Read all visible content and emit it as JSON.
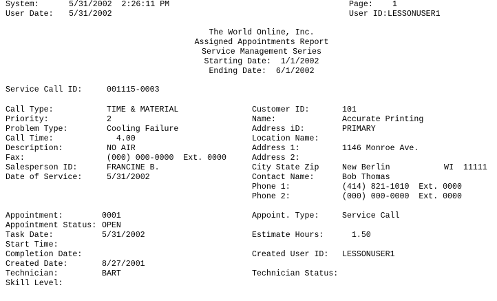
{
  "header": {
    "system_label": "System:",
    "system_value": "5/31/2002  2:26:11 PM",
    "user_date_label": "User Date:",
    "user_date_value": "5/31/2002",
    "page_label": "Page:",
    "page_value": "1",
    "user_id_label": "User ID:",
    "user_id_value": "LESSONUSER1"
  },
  "title": {
    "company": "The World Online, Inc.",
    "report": "Assigned Appointments Report",
    "series": "Service Management Series",
    "starting": "Starting Date:  1/1/2002",
    "ending": "Ending Date:  6/1/2002"
  },
  "service_call": {
    "label": "Service Call ID:",
    "value": "001115-0003"
  },
  "call_left": [
    {
      "label": "Call Type:",
      "value": "TIME & MATERIAL"
    },
    {
      "label": "Priority:",
      "value": "2"
    },
    {
      "label": "Problem Type:",
      "value": "Cooling Failure"
    },
    {
      "label": "Call Time:",
      "value": "  4.00"
    },
    {
      "label": "Description:",
      "value": "NO AIR"
    },
    {
      "label": "Fax:",
      "value": "(000) 000-0000  Ext. 0000"
    },
    {
      "label": "Salesperson ID:",
      "value": "FRANCINE B."
    },
    {
      "label": "Date of Service:",
      "value": "5/31/2002"
    }
  ],
  "call_right": [
    {
      "label": "Customer ID:",
      "value": "101"
    },
    {
      "label": "Name:",
      "value": "Accurate Printing"
    },
    {
      "label": "Address iD:",
      "value": "PRIMARY"
    },
    {
      "label": "Location Name:",
      "value": ""
    },
    {
      "label": "Address 1:",
      "value": "1146 Monroe Ave."
    },
    {
      "label": "Address 2:",
      "value": ""
    },
    {
      "label": "City State Zip",
      "value": "New Berlin",
      "state": "WI",
      "zip": "11111"
    },
    {
      "label": "Contact Name:",
      "value": "Bob Thomas"
    },
    {
      "label": "Phone 1:",
      "value": "(414) 821-1010  Ext. 0000"
    },
    {
      "label": "Phone 2:",
      "value": "(000) 000-0000  Ext. 0000"
    }
  ],
  "appt_left": [
    {
      "label": "Appointment:",
      "value": "0001"
    },
    {
      "label": "Appointment Status:",
      "value": "OPEN"
    },
    {
      "label": "Task Date:",
      "value": "5/31/2002"
    },
    {
      "label": "Start Time:",
      "value": ""
    },
    {
      "label": "Completion Date:",
      "value": ""
    },
    {
      "label": "Created Date:",
      "value": "8/27/2001"
    },
    {
      "label": "Technician:",
      "value": "BART"
    },
    {
      "label": "Skill Level:",
      "value": ""
    }
  ],
  "appt_right": [
    {
      "label": "Appoint. Type:",
      "value": "Service Call"
    },
    null,
    {
      "label": "Estimate Hours:",
      "value": "  1.50"
    },
    null,
    {
      "label": "Created User ID:",
      "value": "LESSONUSER1"
    },
    null,
    {
      "label": "Technician Status:",
      "value": ""
    }
  ]
}
